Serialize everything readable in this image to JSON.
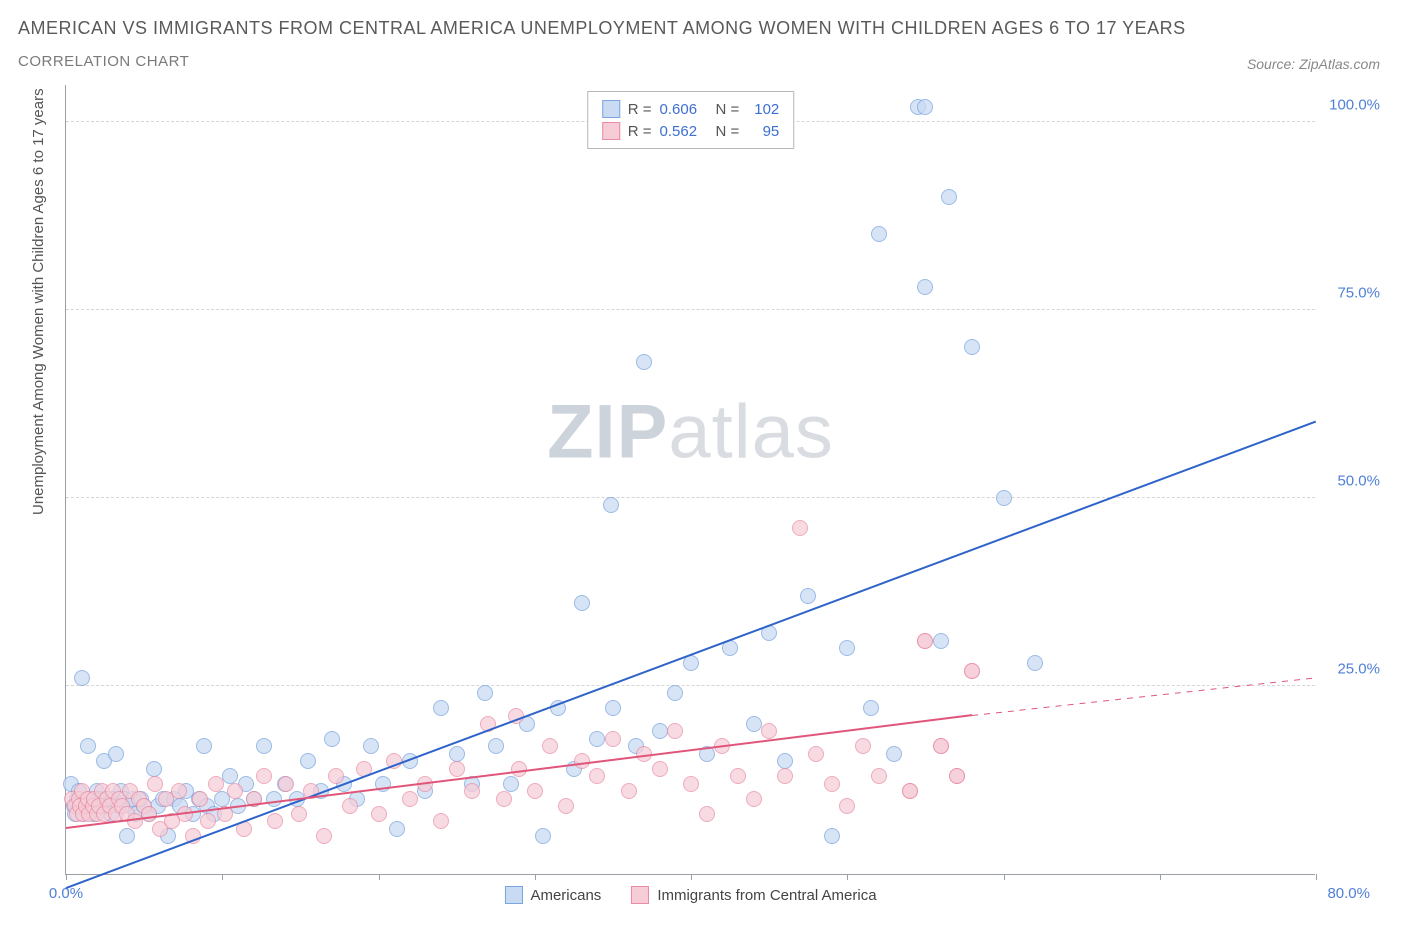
{
  "title": "AMERICAN VS IMMIGRANTS FROM CENTRAL AMERICA UNEMPLOYMENT AMONG WOMEN WITH CHILDREN AGES 6 TO 17 YEARS",
  "subtitle": "CORRELATION CHART",
  "source": "Source: ZipAtlas.com",
  "y_axis_label": "Unemployment Among Women with Children Ages 6 to 17 years",
  "watermark_bold": "ZIP",
  "watermark_light": "atlas",
  "chart": {
    "type": "scatter",
    "xlim": [
      0,
      80
    ],
    "ylim": [
      0,
      105
    ],
    "x_ticks": [
      0,
      10,
      20,
      30,
      40,
      50,
      60,
      70,
      80
    ],
    "x_tick_labels": {
      "0": "0.0%",
      "80": "80.0%"
    },
    "y_ticks": [
      25,
      50,
      75,
      100
    ],
    "y_tick_labels": {
      "25": "25.0%",
      "50": "50.0%",
      "75": "75.0%",
      "100": "100.0%"
    },
    "background_color": "#ffffff",
    "grid_color": "#d6d6d6",
    "axis_color": "#9aa0a6",
    "series": [
      {
        "name": "Americans",
        "marker_fill": "#c9dbf3",
        "marker_stroke": "#7ba4e0",
        "marker_opacity": 0.75,
        "marker_radius": 8,
        "trend_color": "#2e64c9",
        "trend_width": 2.2,
        "trend": {
          "x1": 0,
          "y1": -2,
          "x2": 80,
          "y2": 60
        },
        "R": "0.606",
        "N": "102",
        "points": [
          [
            0.3,
            12
          ],
          [
            0.5,
            9
          ],
          [
            0.6,
            8
          ],
          [
            0.7,
            10
          ],
          [
            0.8,
            11
          ],
          [
            0.9,
            9
          ],
          [
            1.0,
            26
          ],
          [
            1.1,
            8
          ],
          [
            1.2,
            9
          ],
          [
            1.4,
            17
          ],
          [
            1.5,
            10
          ],
          [
            1.7,
            9
          ],
          [
            1.8,
            8
          ],
          [
            1.9,
            9
          ],
          [
            2.0,
            11
          ],
          [
            2.1,
            10
          ],
          [
            2.3,
            9
          ],
          [
            2.4,
            15
          ],
          [
            2.5,
            10
          ],
          [
            2.7,
            9
          ],
          [
            2.9,
            8
          ],
          [
            3.0,
            10
          ],
          [
            3.2,
            16
          ],
          [
            3.4,
            9
          ],
          [
            3.5,
            11
          ],
          [
            3.7,
            10
          ],
          [
            3.9,
            5
          ],
          [
            4.1,
            9
          ],
          [
            4.3,
            10
          ],
          [
            4.5,
            8
          ],
          [
            4.8,
            10
          ],
          [
            5.0,
            9
          ],
          [
            5.3,
            8
          ],
          [
            5.6,
            14
          ],
          [
            5.9,
            9
          ],
          [
            6.2,
            10
          ],
          [
            6.5,
            5
          ],
          [
            6.9,
            10
          ],
          [
            7.3,
            9
          ],
          [
            7.7,
            11
          ],
          [
            8.1,
            8
          ],
          [
            8.5,
            10
          ],
          [
            8.8,
            17
          ],
          [
            9.0,
            9
          ],
          [
            9.5,
            8
          ],
          [
            10.0,
            10
          ],
          [
            10.5,
            13
          ],
          [
            11.0,
            9
          ],
          [
            11.5,
            12
          ],
          [
            12.0,
            10
          ],
          [
            12.7,
            17
          ],
          [
            13.3,
            10
          ],
          [
            14.0,
            12
          ],
          [
            14.8,
            10
          ],
          [
            15.5,
            15
          ],
          [
            16.3,
            11
          ],
          [
            17.0,
            18
          ],
          [
            17.8,
            12
          ],
          [
            18.6,
            10
          ],
          [
            19.5,
            17
          ],
          [
            20.3,
            12
          ],
          [
            21.2,
            6
          ],
          [
            22.0,
            15
          ],
          [
            23.0,
            11
          ],
          [
            24.0,
            22
          ],
          [
            25.0,
            16
          ],
          [
            26.0,
            12
          ],
          [
            26.8,
            24
          ],
          [
            27.5,
            17
          ],
          [
            28.5,
            12
          ],
          [
            29.5,
            20
          ],
          [
            30.5,
            5
          ],
          [
            31.5,
            22
          ],
          [
            32.5,
            14
          ],
          [
            33.0,
            36
          ],
          [
            34.0,
            18
          ],
          [
            34.9,
            49
          ],
          [
            35.0,
            22
          ],
          [
            36.5,
            17
          ],
          [
            37.0,
            68
          ],
          [
            38.0,
            19
          ],
          [
            39.0,
            24
          ],
          [
            40.0,
            28
          ],
          [
            41.0,
            16
          ],
          [
            42.5,
            30
          ],
          [
            44.0,
            20
          ],
          [
            45.0,
            32
          ],
          [
            46.0,
            15
          ],
          [
            47.5,
            37
          ],
          [
            49.0,
            5
          ],
          [
            50.0,
            30
          ],
          [
            51.5,
            22
          ],
          [
            52.0,
            85
          ],
          [
            53.0,
            16
          ],
          [
            54.5,
            102
          ],
          [
            55.0,
            102
          ],
          [
            55.0,
            78
          ],
          [
            56.0,
            31
          ],
          [
            56.5,
            90
          ],
          [
            58.0,
            70
          ],
          [
            60.0,
            50
          ],
          [
            62.0,
            28
          ]
        ]
      },
      {
        "name": "Immigrants from Central America",
        "marker_fill": "#f6cdd7",
        "marker_stroke": "#e88ba3",
        "marker_opacity": 0.72,
        "marker_radius": 8,
        "trend_color": "#e15579",
        "trend_width": 2,
        "trend": {
          "x1": 0,
          "y1": 6,
          "x2": 58,
          "y2": 21
        },
        "trend_dash": {
          "x1": 58,
          "y1": 21,
          "x2": 80,
          "y2": 26
        },
        "R": "0.562",
        "N": "95",
        "points": [
          [
            0.4,
            10
          ],
          [
            0.6,
            9
          ],
          [
            0.7,
            8
          ],
          [
            0.8,
            10
          ],
          [
            0.9,
            9
          ],
          [
            1.0,
            11
          ],
          [
            1.1,
            8
          ],
          [
            1.3,
            9
          ],
          [
            1.4,
            10
          ],
          [
            1.5,
            8
          ],
          [
            1.7,
            9
          ],
          [
            1.8,
            10
          ],
          [
            2.0,
            8
          ],
          [
            2.1,
            9
          ],
          [
            2.3,
            11
          ],
          [
            2.4,
            8
          ],
          [
            2.6,
            10
          ],
          [
            2.8,
            9
          ],
          [
            3.0,
            11
          ],
          [
            3.2,
            8
          ],
          [
            3.4,
            10
          ],
          [
            3.6,
            9
          ],
          [
            3.9,
            8
          ],
          [
            4.1,
            11
          ],
          [
            4.4,
            7
          ],
          [
            4.7,
            10
          ],
          [
            5.0,
            9
          ],
          [
            5.3,
            8
          ],
          [
            5.7,
            12
          ],
          [
            6.0,
            6
          ],
          [
            6.4,
            10
          ],
          [
            6.8,
            7
          ],
          [
            7.2,
            11
          ],
          [
            7.6,
            8
          ],
          [
            8.1,
            5
          ],
          [
            8.6,
            10
          ],
          [
            9.1,
            7
          ],
          [
            9.6,
            12
          ],
          [
            10.2,
            8
          ],
          [
            10.8,
            11
          ],
          [
            11.4,
            6
          ],
          [
            12.0,
            10
          ],
          [
            12.7,
            13
          ],
          [
            13.4,
            7
          ],
          [
            14.1,
            12
          ],
          [
            14.9,
            8
          ],
          [
            15.7,
            11
          ],
          [
            16.5,
            5
          ],
          [
            17.3,
            13
          ],
          [
            18.2,
            9
          ],
          [
            19.1,
            14
          ],
          [
            20.0,
            8
          ],
          [
            21.0,
            15
          ],
          [
            22.0,
            10
          ],
          [
            23.0,
            12
          ],
          [
            24.0,
            7
          ],
          [
            25.0,
            14
          ],
          [
            26.0,
            11
          ],
          [
            27.0,
            20
          ],
          [
            28.0,
            10
          ],
          [
            28.8,
            21
          ],
          [
            29.0,
            14
          ],
          [
            30.0,
            11
          ],
          [
            31.0,
            17
          ],
          [
            32.0,
            9
          ],
          [
            33.0,
            15
          ],
          [
            34.0,
            13
          ],
          [
            35.0,
            18
          ],
          [
            36.0,
            11
          ],
          [
            37.0,
            16
          ],
          [
            38.0,
            14
          ],
          [
            39.0,
            19
          ],
          [
            40.0,
            12
          ],
          [
            41.0,
            8
          ],
          [
            42.0,
            17
          ],
          [
            43.0,
            13
          ],
          [
            44.0,
            10
          ],
          [
            45.0,
            19
          ],
          [
            46.0,
            13
          ],
          [
            47.0,
            46
          ],
          [
            48.0,
            16
          ],
          [
            49.0,
            12
          ],
          [
            50.0,
            9
          ],
          [
            51.0,
            17
          ],
          [
            52.0,
            13
          ],
          [
            54.0,
            11
          ],
          [
            55.0,
            31
          ],
          [
            56.0,
            17
          ],
          [
            57.0,
            13
          ],
          [
            58.0,
            27
          ],
          [
            54.0,
            11
          ],
          [
            55.0,
            31
          ],
          [
            56.0,
            17
          ],
          [
            57.0,
            13
          ],
          [
            58.0,
            27
          ]
        ]
      }
    ],
    "legend_bottom": [
      {
        "label": "Americans",
        "fill": "#c9dbf3",
        "stroke": "#7ba4e0"
      },
      {
        "label": "Immigrants from Central America",
        "fill": "#f6cdd7",
        "stroke": "#e88ba3"
      }
    ],
    "legend_top_labels": {
      "R": "R =",
      "N": "N ="
    }
  }
}
